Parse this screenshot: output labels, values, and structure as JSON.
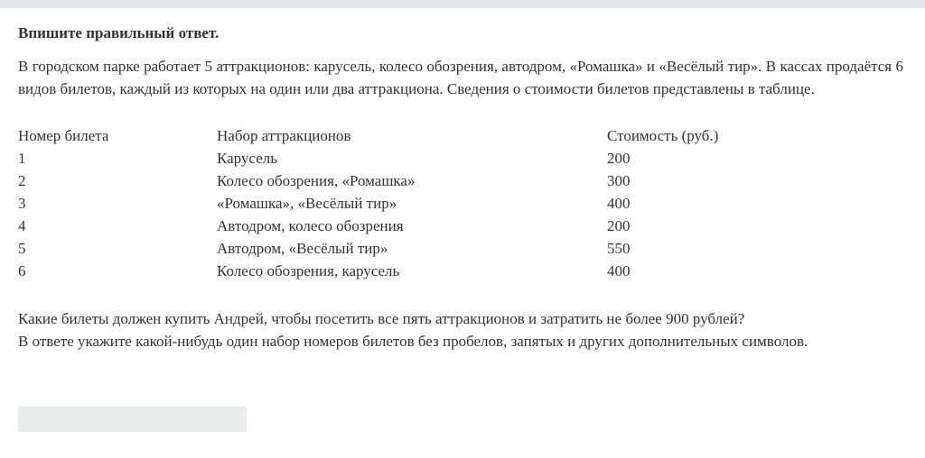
{
  "instruction": "Впишите правильный ответ.",
  "intro": "В городском парке работает 5 аттракционов: карусель, колесо обозрения, автодром, «Ромашка» и «Весёлый тир». В кассах продаётся 6 видов билетов, каждый из которых на один или два аттракциона. Сведения о стоимости билетов представлены в таблице.",
  "table": {
    "headers": [
      "Номер билета",
      "Набор аттракционов",
      "Стоимость (руб.)"
    ],
    "rows": [
      [
        "1",
        "Карусель",
        "200"
      ],
      [
        "2",
        "Колесо обозрения, «Ромашка»",
        "300"
      ],
      [
        "3",
        "«Ромашка», «Весёлый тир»",
        "400"
      ],
      [
        "4",
        "Автодром, колесо обозрения",
        "200"
      ],
      [
        "5",
        "Автодром, «Весёлый тир»",
        "550"
      ],
      [
        "6",
        "Колесо обозрения, карусель",
        "400"
      ]
    ]
  },
  "question": [
    "Какие билеты должен купить Андрей, чтобы посетить все пять аттракционов и затратить не более 900 рублей?",
    "В ответе укажите какой-нибудь один набор номеров билетов без пробелов, запятых и других дополнительных символов."
  ],
  "answer": {
    "value": ""
  }
}
